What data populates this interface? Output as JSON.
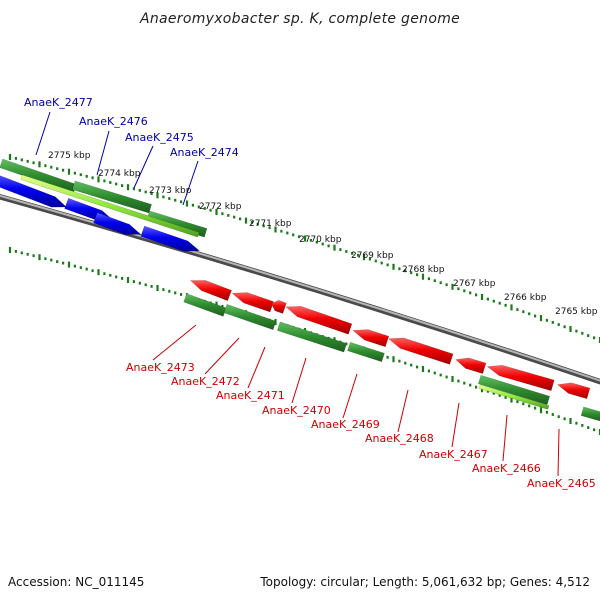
{
  "title": "Anaeromyxobacter sp. K, complete genome",
  "footer": {
    "accession": "Accession: NC_011145",
    "summary": "Topology: circular; Length: 5,061,632 bp; Genes: 4,512"
  },
  "colors": {
    "backbone": "#808080",
    "forward_cds": "#0000ee",
    "reverse_cds": "#ee0000",
    "gene_feature": "#2e8b2e",
    "rna_feature": "#7fe02f",
    "tick": "#1a7a1a",
    "forward_label": "#0000aa",
    "reverse_label": "#cc0000"
  },
  "ticks": [
    "2775 kbp",
    "2774 kbp",
    "2773 kbp",
    "2772 kbp",
    "2771 kbp",
    "2770 kbp",
    "2769 kbp",
    "2768 kbp",
    "2767 kbp",
    "2766 kbp",
    "2765 kbp"
  ],
  "forward_genes": [
    "AnaeK_2477",
    "AnaeK_2476",
    "AnaeK_2475",
    "AnaeK_2474"
  ],
  "reverse_genes": [
    "AnaeK_2473",
    "AnaeK_2472",
    "AnaeK_2471",
    "AnaeK_2470",
    "AnaeK_2469",
    "AnaeK_2468",
    "AnaeK_2467",
    "AnaeK_2466",
    "AnaeK_2465"
  ]
}
